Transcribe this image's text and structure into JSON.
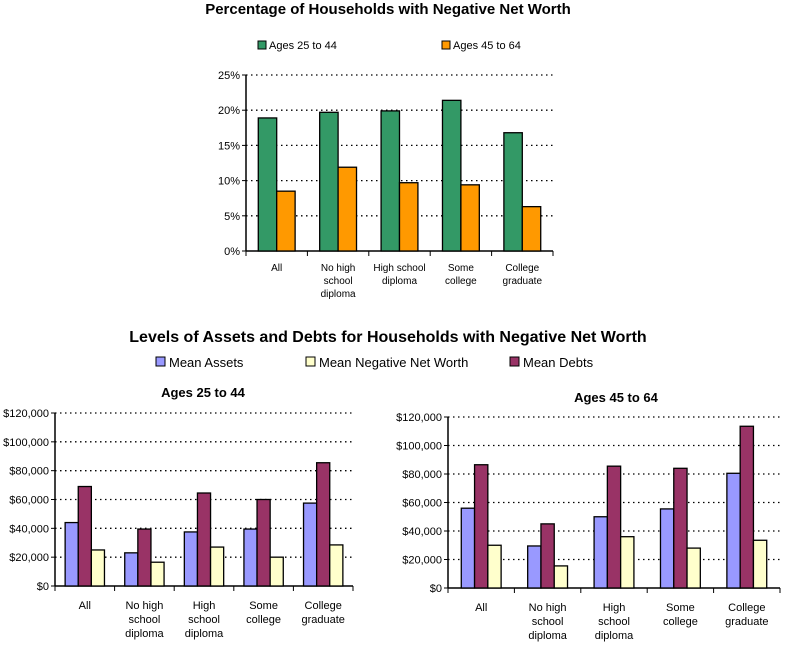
{
  "chart_data": [
    {
      "type": "bar",
      "title": "Percentage of Households with Negative Net Worth",
      "categories": [
        [
          "All"
        ],
        [
          "No high",
          "school",
          "diploma"
        ],
        [
          "High school",
          "diploma"
        ],
        [
          "Some",
          "college"
        ],
        [
          "College",
          "graduate"
        ]
      ],
      "series": [
        {
          "name": "Ages 25 to 44",
          "color": "#339966",
          "values": [
            18.9,
            19.7,
            19.9,
            21.4,
            16.8
          ]
        },
        {
          "name": "Ages 45 to 64",
          "color": "#FF9900",
          "values": [
            8.5,
            11.9,
            9.7,
            9.4,
            6.3
          ]
        }
      ],
      "yticks": [
        "0%",
        "5%",
        "10%",
        "15%",
        "20%",
        "25%"
      ],
      "ylim": [
        0,
        25
      ],
      "grid": true,
      "legend": "top"
    },
    {
      "type": "bar",
      "suptitle": "Levels of Assets and Debts for Households with Negative Net Worth",
      "legend_entries": [
        {
          "name": "Mean Assets",
          "color": "#9999FF"
        },
        {
          "name": "Mean Negative Net Worth",
          "color": "#FFFFCC"
        },
        {
          "name": "Mean Debts",
          "color": "#993366"
        }
      ],
      "title": "Ages 25 to 44",
      "categories": [
        [
          "All"
        ],
        [
          "No high",
          "school",
          "diploma"
        ],
        [
          "High",
          "school",
          "diploma"
        ],
        [
          "Some",
          "college"
        ],
        [
          "College",
          "graduate"
        ]
      ],
      "series": [
        {
          "name": "Mean Assets",
          "color": "#9999FF",
          "values": [
            44000,
            23000,
            37500,
            39500,
            57500
          ]
        },
        {
          "name": "Mean Debts",
          "color": "#993366",
          "values": [
            69000,
            39500,
            64500,
            60000,
            85500
          ]
        },
        {
          "name": "Mean Negative Net Worth",
          "color": "#FFFFCC",
          "values": [
            25000,
            16500,
            27000,
            20000,
            28500
          ]
        }
      ],
      "yticks": [
        "$0",
        "$20,000",
        "$40,000",
        "$60,000",
        "$80,000",
        "$100,000",
        "$120,000"
      ],
      "ylim": [
        0,
        120000
      ],
      "grid": true
    },
    {
      "type": "bar",
      "title": "Ages 45 to 64",
      "categories": [
        [
          "All"
        ],
        [
          "No high",
          "school",
          "diploma"
        ],
        [
          "High",
          "school",
          "diploma"
        ],
        [
          "Some",
          "college"
        ],
        [
          "College",
          "graduate"
        ]
      ],
      "series": [
        {
          "name": "Mean Assets",
          "color": "#9999FF",
          "values": [
            56000,
            29500,
            50000,
            55500,
            80500
          ]
        },
        {
          "name": "Mean Debts",
          "color": "#993366",
          "values": [
            86500,
            45000,
            85500,
            84000,
            113500
          ]
        },
        {
          "name": "Mean Negative Net Worth",
          "color": "#FFFFCC",
          "values": [
            30000,
            15500,
            36000,
            28000,
            33500
          ]
        }
      ],
      "yticks": [
        "$0",
        "$20,000",
        "$40,000",
        "$60,000",
        "$80,000",
        "$100,000",
        "$120,000"
      ],
      "ylim": [
        0,
        120000
      ],
      "grid": true
    }
  ]
}
